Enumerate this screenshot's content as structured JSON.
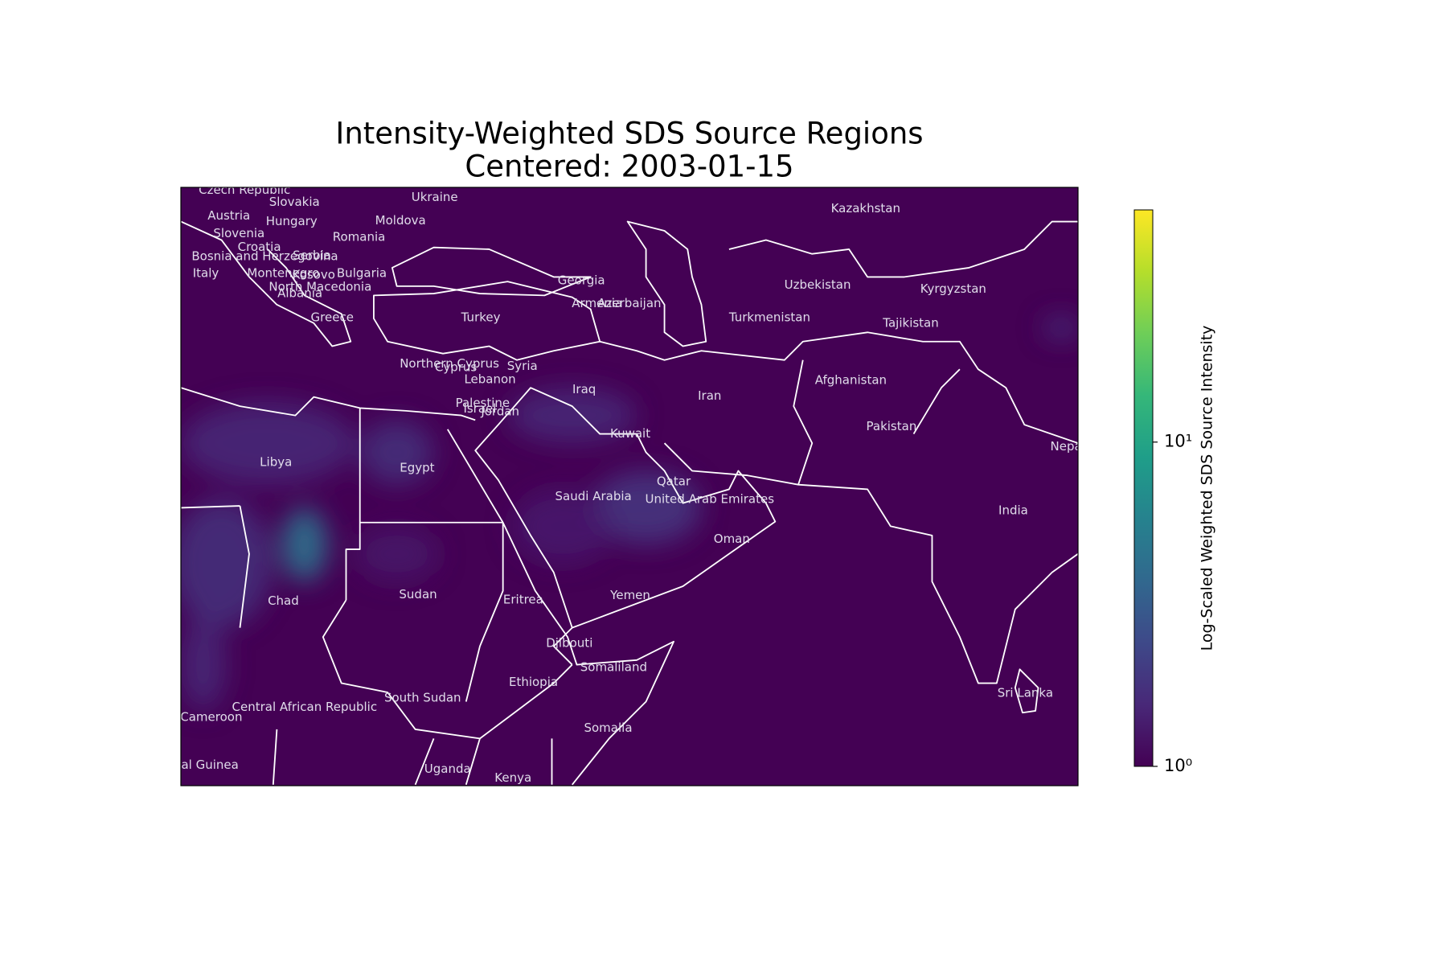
{
  "title": "Intensity-Weighted SDS Source Regions",
  "subtitle": "Centered: 2003-01-15",
  "colorbar": {
    "label": "Log-Scaled Weighted SDS Source Intensity",
    "scale": "log",
    "colormap": "viridis",
    "lim": [
      1,
      52
    ],
    "ticks": [
      {
        "value": 1,
        "label": "10⁰"
      },
      {
        "value": 10,
        "label": "10¹"
      }
    ]
  },
  "countries": [
    "Czech Republic",
    "Ukraine",
    "Kazakhstan",
    "Slovakia",
    "Austria",
    "Hungary",
    "Moldova",
    "Slovenia",
    "Romania",
    "Croatia",
    "Bosnia and Herzegovina",
    "Serbia",
    "Italy",
    "Montenegro",
    "Kosovo",
    "Bulgaria",
    "North Macedonia",
    "Albania",
    "Georgia",
    "Uzbekistan",
    "Kyrgyzstan",
    "Armenia",
    "Azerbaijan",
    "Turkey",
    "Greece",
    "Turkmenistan",
    "Tajikistan",
    "Northern Cyprus",
    "Cyprus",
    "Syria",
    "Lebanon",
    "Iraq",
    "Iran",
    "Afghanistan",
    "Palestine",
    "Israel",
    "Jordan",
    "Kuwait",
    "Pakistan",
    "Nepal",
    "Libya",
    "Egypt",
    "Qatar",
    "Saudi Arabia",
    "United Arab Emirates",
    "India",
    "Oman",
    "Chad",
    "Sudan",
    "Eritrea",
    "Yemen",
    "Djibouti",
    "Somaliland",
    "Ethiopia",
    "Sri Lanka",
    "South Sudan",
    "Central African Republic",
    "Cameroon",
    "Somalia",
    "Equatorial Guinea",
    "Uganda",
    "Kenya"
  ]
}
